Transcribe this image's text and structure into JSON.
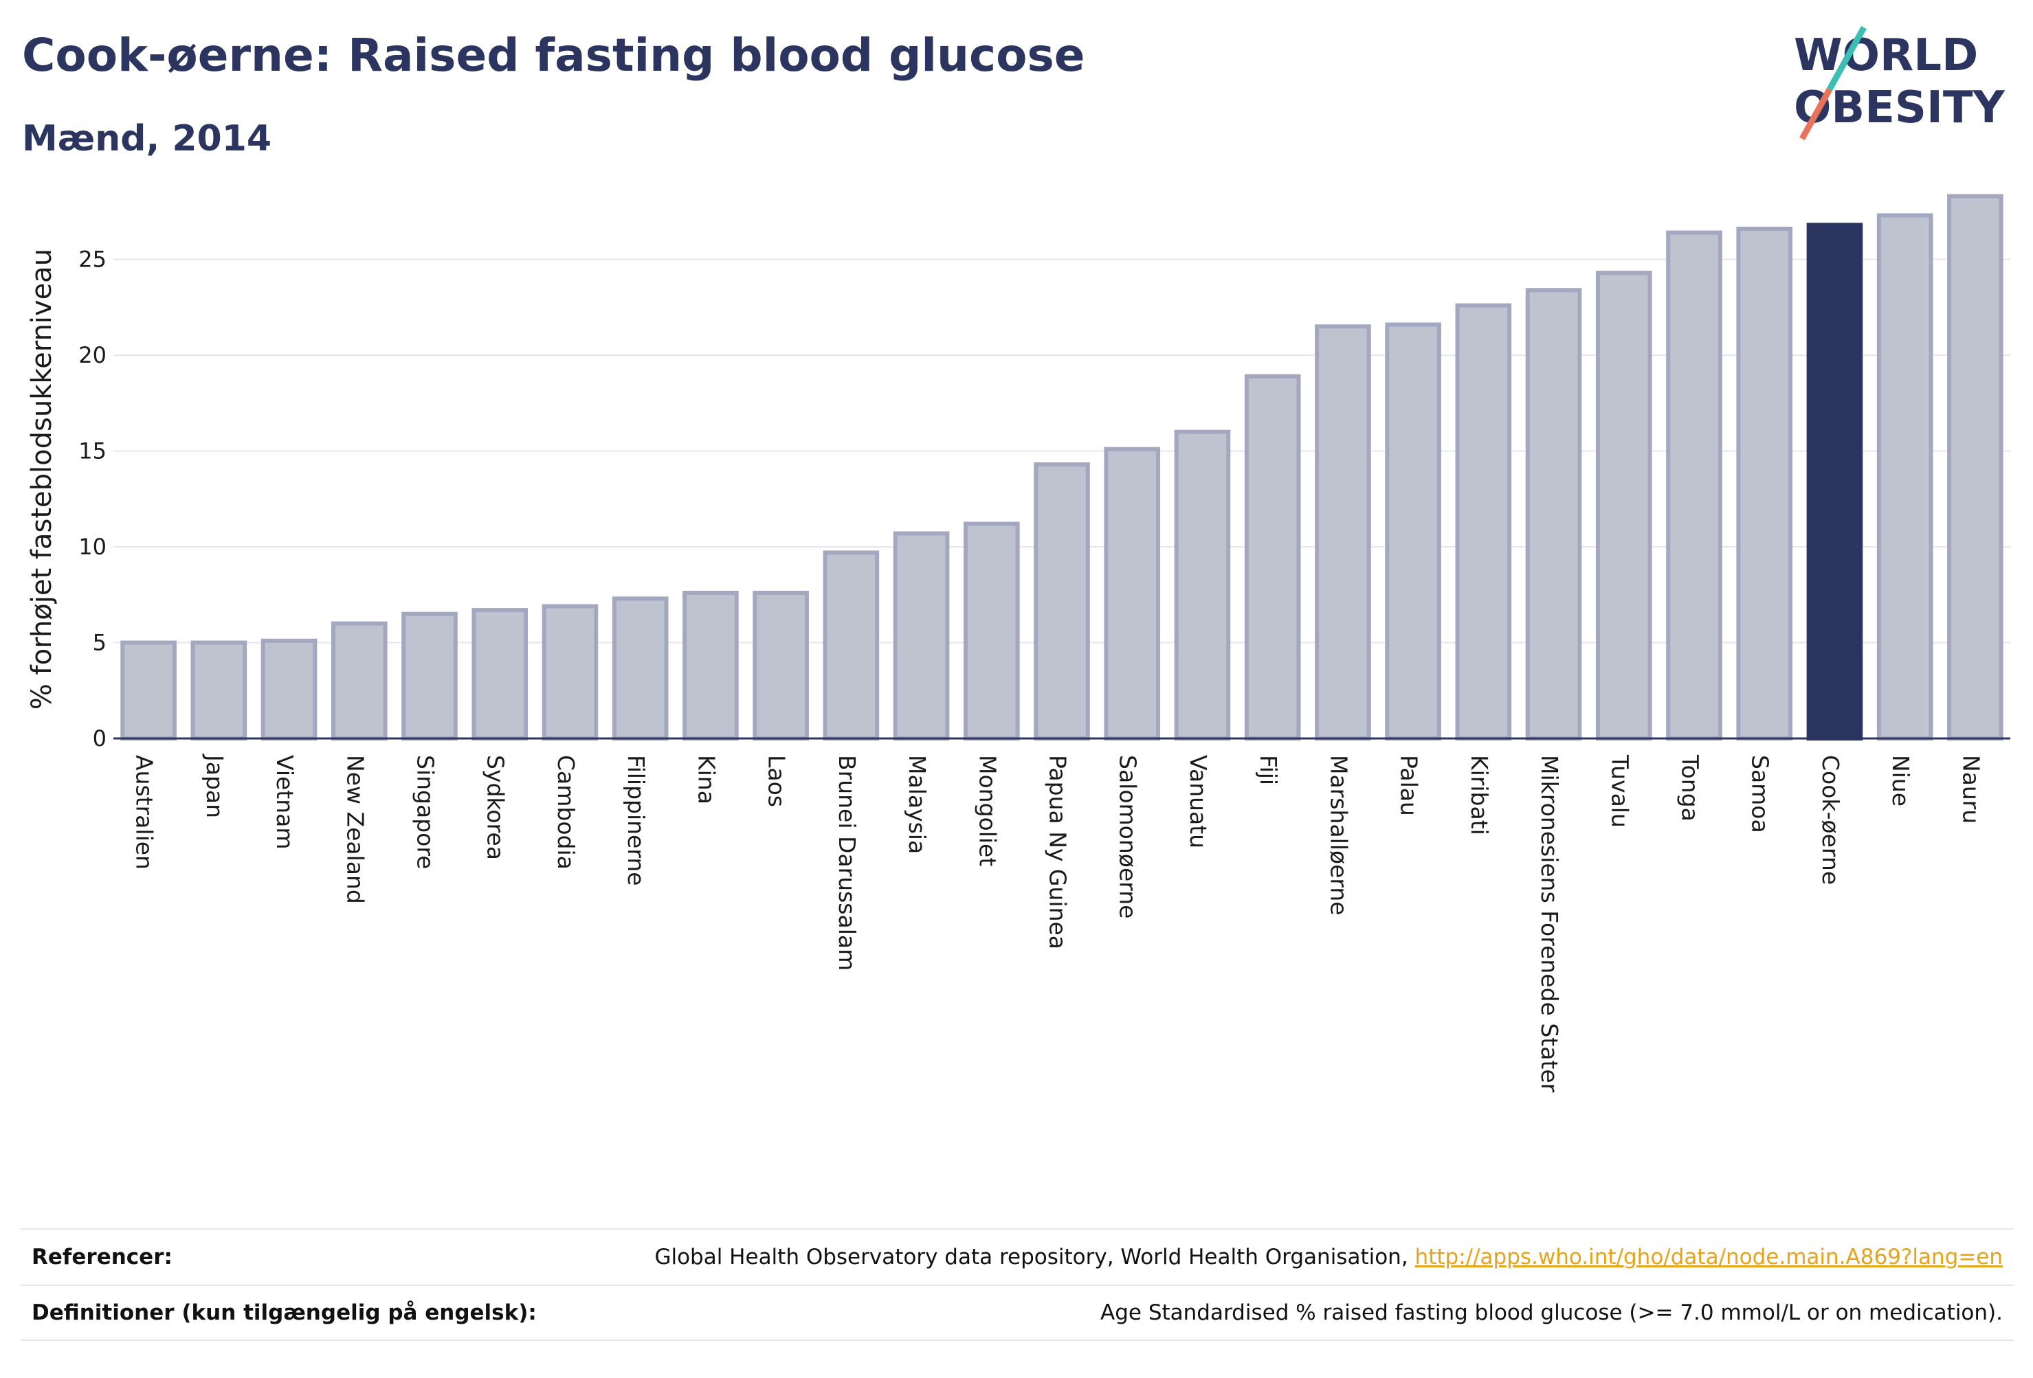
{
  "header": {
    "title": "Cook-øerne: Raised fasting blood glucose",
    "subtitle": "Mænd, 2014"
  },
  "logo": {
    "line1": "WORLD",
    "line2": "OBESITY",
    "colors": {
      "text": "#2b3560",
      "slash_top": "#3bbfb4",
      "slash_bottom": "#e8735a"
    }
  },
  "colors": {
    "bar_fill": "#bfc3cf",
    "bar_stroke": "#a3a8c0",
    "highlight_fill": "#2b3560",
    "grid": "#e6e6ee",
    "axis": "#2b3560"
  },
  "chart_data": {
    "type": "bar",
    "title": "Cook-øerne: Raised fasting blood glucose",
    "subtitle": "Mænd, 2014",
    "xlabel": "",
    "ylabel": "% forhøjet fasteblodsukkerniveau",
    "ylim": [
      0,
      28.5
    ],
    "yticks": [
      0,
      5,
      10,
      15,
      20,
      25
    ],
    "grid": true,
    "highlight": "Cook-øerne",
    "categories": [
      "Australien",
      "Japan",
      "Vietnam",
      "New Zealand",
      "Singapore",
      "Sydkorea",
      "Cambodia",
      "Filippinerne",
      "Kina",
      "Laos",
      "Brunei Darussalam",
      "Malaysia",
      "Mongoliet",
      "Papua Ny Guinea",
      "Salomonøerne",
      "Vanuatu",
      "Fiji",
      "Marshalløerne",
      "Palau",
      "Kiribati",
      "Mikronesiens Forenede Stater",
      "Tuvalu",
      "Tonga",
      "Samoa",
      "Cook-øerne",
      "Niue",
      "Nauru"
    ],
    "values": [
      5.0,
      5.0,
      5.1,
      6.0,
      6.5,
      6.7,
      6.9,
      7.3,
      7.6,
      7.6,
      9.7,
      10.7,
      11.2,
      14.3,
      15.1,
      16.0,
      18.9,
      21.5,
      21.6,
      22.6,
      23.4,
      24.3,
      26.4,
      26.6,
      26.8,
      27.3,
      28.3
    ]
  },
  "footer": {
    "references_label": "Referencer:",
    "references_text": "Global Health Observatory data repository, World Health Organisation,",
    "references_link": "http://apps.who.int/gho/data/node.main.A869?lang=en",
    "definitions_label": "Definitioner (kun tilgængelig på engelsk):",
    "definitions_text": "Age Standardised % raised fasting blood glucose (>= 7.0 mmol/L or on medication)."
  }
}
